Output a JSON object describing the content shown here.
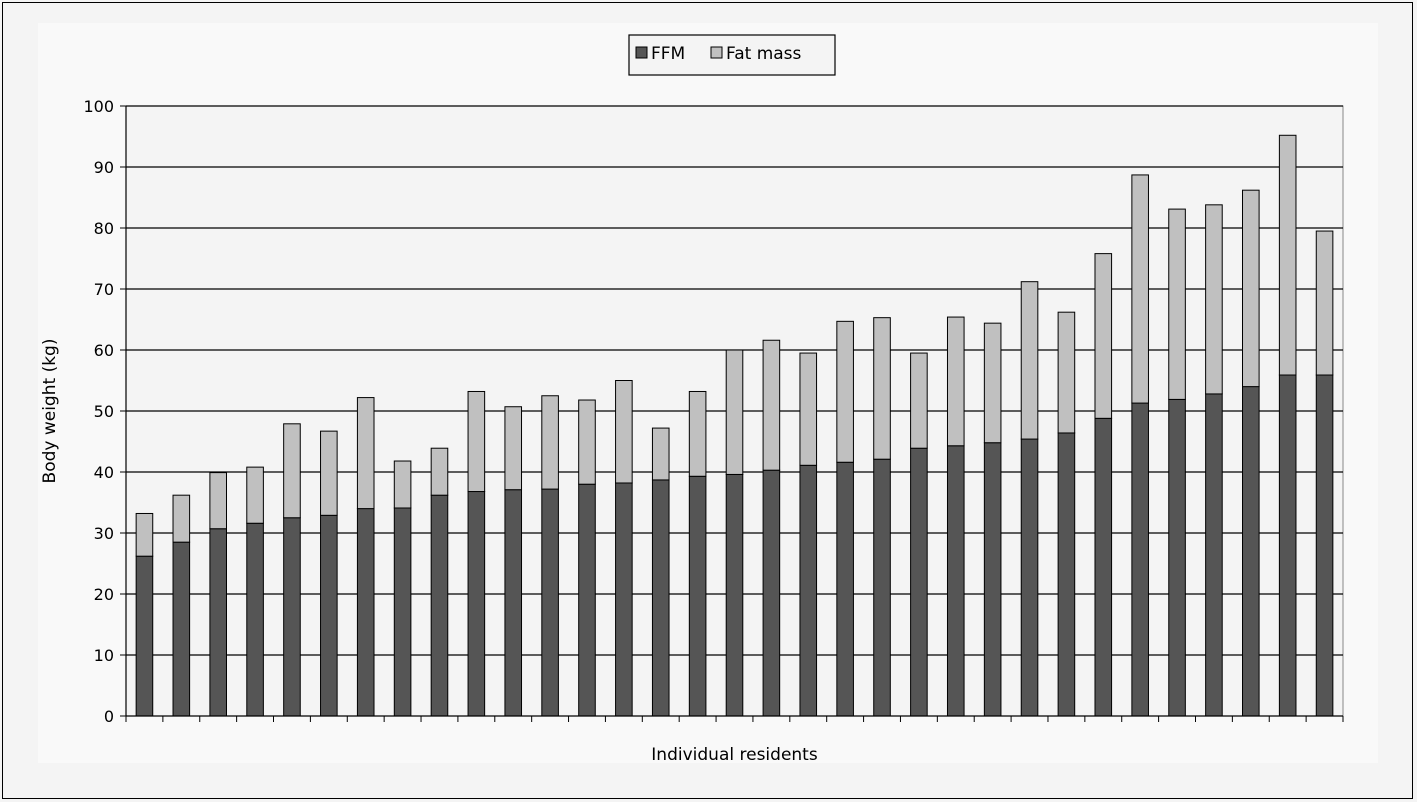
{
  "chart_data": {
    "type": "bar",
    "stacked": true,
    "title": "",
    "xlabel": "Individual residents",
    "ylabel": "Body weight (kg)",
    "ylim": [
      0,
      100
    ],
    "yticks": [
      0,
      10,
      20,
      30,
      40,
      50,
      60,
      70,
      80,
      90,
      100
    ],
    "grid": true,
    "legend_position": "top-center",
    "series": [
      {
        "name": "FFM",
        "color": "#555555",
        "values": [
          26.2,
          28.5,
          30.7,
          31.6,
          32.5,
          32.9,
          34.0,
          34.1,
          36.2,
          36.8,
          37.1,
          37.2,
          38.0,
          38.2,
          38.7,
          39.3,
          39.6,
          40.3,
          41.1,
          41.6,
          42.1,
          43.9,
          44.3,
          44.8,
          45.4,
          46.4,
          48.8,
          51.3,
          51.9,
          52.8,
          54.0,
          55.9,
          55.9
        ]
      },
      {
        "name": "Fat mass",
        "color": "#c0c0c0",
        "values": [
          7.0,
          7.7,
          9.2,
          9.2,
          15.4,
          13.8,
          18.2,
          7.7,
          7.7,
          16.4,
          13.6,
          15.3,
          13.8,
          16.8,
          8.5,
          13.9,
          20.4,
          21.3,
          18.4,
          23.1,
          23.2,
          15.6,
          21.1,
          19.6,
          25.8,
          19.8,
          27.0,
          37.4,
          31.2,
          31.0,
          32.2,
          39.3,
          23.6
        ]
      }
    ]
  }
}
